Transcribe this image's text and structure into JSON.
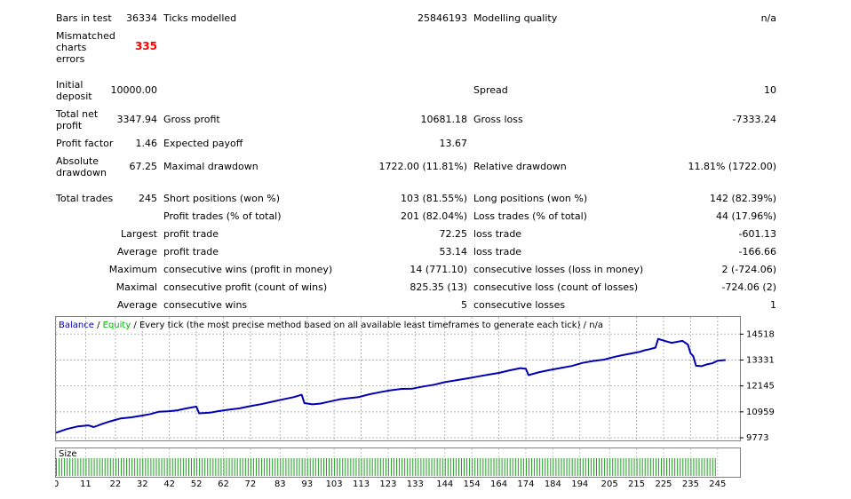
{
  "stats": {
    "bars_in_test": {
      "label": "Bars in test",
      "value": "36334"
    },
    "ticks_modelled": {
      "label": "Ticks modelled",
      "value": "25846193"
    },
    "modelling_quality": {
      "label": "Modelling quality",
      "value": "n/a"
    },
    "mismatched": {
      "label_1": "Mismatched",
      "label_2": "charts",
      "label_3": "errors",
      "value": "335"
    },
    "initial_deposit": {
      "label_1": "Initial",
      "label_2": "deposit",
      "value": "10000.00"
    },
    "spread": {
      "label": "Spread",
      "value": "10"
    },
    "total_net_profit": {
      "label_1": "Total net",
      "label_2": "profit",
      "value": "3347.94"
    },
    "gross_profit": {
      "label": "Gross profit",
      "value": "10681.18"
    },
    "gross_loss": {
      "label": "Gross loss",
      "value": "-7333.24"
    },
    "profit_factor": {
      "label": "Profit factor",
      "value": "1.46"
    },
    "expected_payoff": {
      "label": "Expected payoff",
      "value": "13.67"
    },
    "absolute_drawdown": {
      "label_1": "Absolute",
      "label_2": "drawdown",
      "value": "67.25"
    },
    "maximal_drawdown": {
      "label": "Maximal drawdown",
      "value": "1722.00 (11.81%)"
    },
    "relative_drawdown": {
      "label": "Relative drawdown",
      "value": "11.81% (1722.00)"
    },
    "total_trades": {
      "label": "Total trades",
      "value": "245"
    },
    "short_positions": {
      "label": "Short positions (won %)",
      "value": "103 (81.55%)"
    },
    "long_positions": {
      "label": "Long positions (won %)",
      "value": "142 (82.39%)"
    },
    "profit_trades": {
      "label": "Profit trades (% of total)",
      "value": "201 (82.04%)"
    },
    "loss_trades": {
      "label": "Loss trades (% of total)",
      "value": "44 (17.96%)"
    },
    "largest": {
      "label": "Largest",
      "profit_label": "profit trade",
      "profit_value": "72.25",
      "loss_label": "loss trade",
      "loss_value": "-601.13"
    },
    "average": {
      "label": "Average",
      "profit_label": "profit trade",
      "profit_value": "53.14",
      "loss_label": "loss trade",
      "loss_value": "-166.66"
    },
    "maximum": {
      "label": "Maximum",
      "wins_label": "consecutive wins (profit in money)",
      "wins_value": "14 (771.10)",
      "losses_label": "consecutive losses (loss in money)",
      "losses_value": "2 (-724.06)"
    },
    "maximal": {
      "label": "Maximal",
      "profit_label": "consecutive profit (count of wins)",
      "profit_value": "825.35 (13)",
      "loss_label": "consecutive loss (count of losses)",
      "loss_value": "-724.06 (2)"
    },
    "average_consecutive": {
      "label": "Average",
      "wins_label": "consecutive wins",
      "wins_value": "5",
      "losses_label": "consecutive losses",
      "losses_value": "1"
    }
  },
  "colors": {
    "balance": "#0000b4",
    "equity": "#00b400",
    "text": "#000000",
    "red": "#ff0000",
    "grid": "#c8c8c8",
    "size_bar": "#1ea01e"
  },
  "chart_data": {
    "type": "line",
    "title_balance": "Balance",
    "title_sep1": " / ",
    "title_equity": "Equity",
    "title_rest": " / Every tick (the most precise method based on all available least timeframes to generate each tick) / n/a",
    "size_label": "Size",
    "ylim": [
      9773,
      15100
    ],
    "y_ticks": [
      14518,
      13331,
      12145,
      10959,
      9773
    ],
    "x_ticks": [
      0,
      11,
      22,
      32,
      42,
      52,
      62,
      72,
      83,
      93,
      103,
      113,
      123,
      133,
      144,
      154,
      164,
      174,
      184,
      194,
      205,
      215,
      225,
      235,
      245
    ],
    "xlim": [
      0,
      250
    ],
    "series": [
      {
        "name": "Balance",
        "x": [
          0,
          4,
          8,
          12,
          14,
          17,
          20,
          24,
          28,
          32,
          35,
          38,
          42,
          45,
          48,
          52,
          53,
          57,
          60,
          64,
          68,
          72,
          76,
          80,
          84,
          88,
          91,
          92,
          95,
          98,
          102,
          105,
          108,
          112,
          116,
          120,
          124,
          128,
          132,
          136,
          140,
          144,
          148,
          152,
          156,
          160,
          164,
          168,
          172,
          174,
          175,
          179,
          183,
          187,
          191,
          195,
          199,
          203,
          207,
          210,
          213,
          216,
          218,
          220,
          222,
          223,
          226,
          228,
          232,
          234,
          235,
          236,
          237,
          239,
          241,
          243,
          245,
          248
        ],
        "values": [
          10000,
          10170,
          10290,
          10340,
          10260,
          10400,
          10520,
          10660,
          10710,
          10790,
          10860,
          10960,
          10990,
          11030,
          11110,
          11200,
          10890,
          10920,
          10990,
          11060,
          11120,
          11220,
          11310,
          11420,
          11530,
          11630,
          11740,
          11360,
          11300,
          11340,
          11450,
          11530,
          11580,
          11630,
          11760,
          11860,
          11950,
          12010,
          12020,
          12120,
          12200,
          12320,
          12400,
          12480,
          12570,
          12660,
          12740,
          12860,
          12960,
          12930,
          12640,
          12780,
          12880,
          12970,
          13060,
          13200,
          13290,
          13350,
          13480,
          13560,
          13630,
          13700,
          13780,
          13830,
          13900,
          14300,
          14190,
          14120,
          14210,
          14040,
          13640,
          13510,
          13070,
          13050,
          13130,
          13180,
          13300,
          13331
        ]
      }
    ],
    "size_bars": 245
  }
}
